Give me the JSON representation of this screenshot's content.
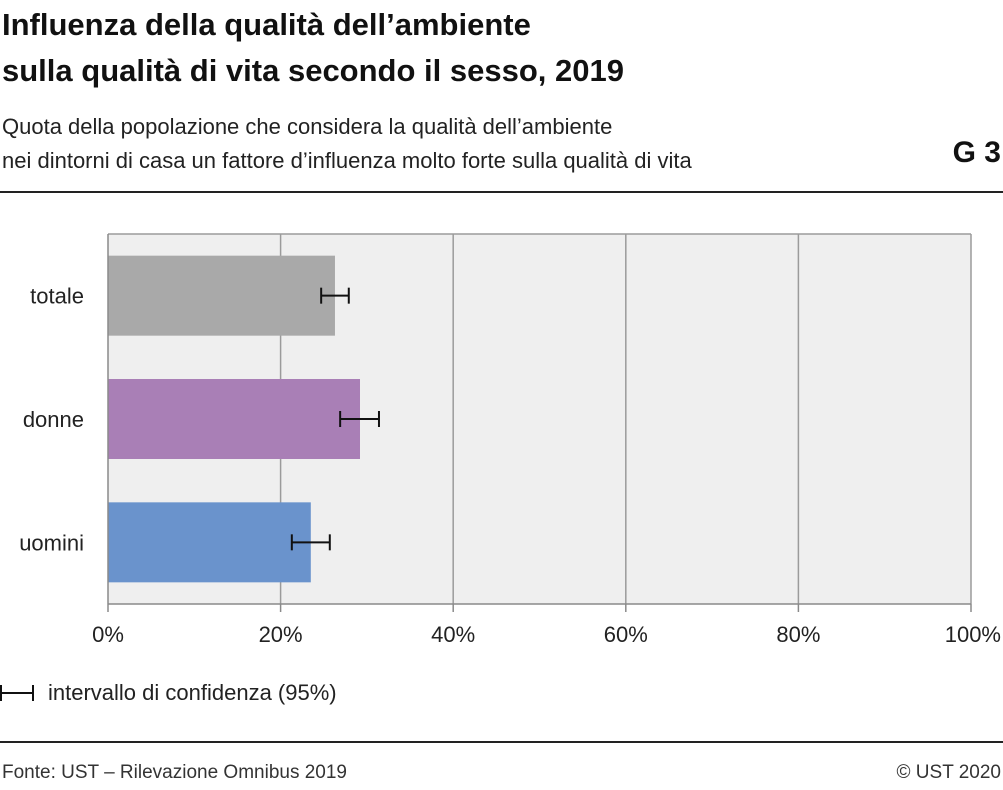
{
  "title_lines": [
    "Influenza della qualità dell’ambiente",
    "sulla qualità di vita secondo il sesso, 2019"
  ],
  "subtitle_lines": [
    "Quota della popolazione che considera la qualità dell’ambiente",
    "nei dintorni di casa un fattore d’influenza molto forte sulla qualità di vita"
  ],
  "chart_code": "G 3",
  "legend_label": "intervallo di confidenza (95%)",
  "footer": {
    "source": "Fonte: UST – Rilevazione Omnibus 2019",
    "copyright": "© UST 2020"
  },
  "chart_data": {
    "type": "bar",
    "orientation": "horizontal",
    "categories": [
      "totale",
      "donne",
      "uomini"
    ],
    "values": [
      26.3,
      29.2,
      23.5
    ],
    "ci_low": [
      24.7,
      26.9,
      21.3
    ],
    "ci_high": [
      27.9,
      31.4,
      25.7
    ],
    "colors": [
      "#a9a9a9",
      "#a97fb6",
      "#6a93cc"
    ],
    "xlim": [
      0,
      100
    ],
    "x_ticks": [
      0,
      20,
      40,
      60,
      80,
      100
    ],
    "x_tick_labels": [
      "0%",
      "20%",
      "40%",
      "60%",
      "80%",
      "100%"
    ],
    "grid": true,
    "plot_background": "#efefef",
    "legend_position": "bottom-left"
  }
}
